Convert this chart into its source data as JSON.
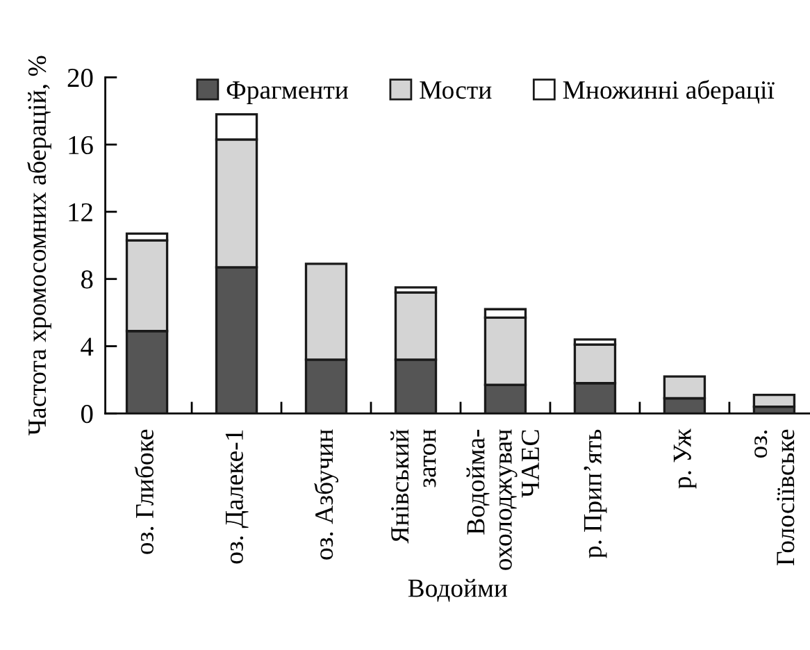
{
  "chart_data": {
    "type": "bar",
    "stacked": true,
    "xlabel": "Водойми",
    "ylabel": "Частота хромосомних аберацій, %",
    "categories": [
      "оз. Глибоке",
      "оз. Далеке-1",
      "оз. Азбучин",
      "Янівський\nзатон",
      "Водойма-\nохолоджувач\nЧАЕС",
      "р. Прип’ять",
      "р. Уж",
      "оз.\nГолосіївське"
    ],
    "series": [
      {
        "name": "Фрагменти",
        "color": "#555555",
        "values": [
          4.9,
          8.7,
          3.2,
          3.2,
          1.7,
          1.8,
          0.9,
          0.4
        ]
      },
      {
        "name": "Мости",
        "color": "#d4d4d4",
        "values": [
          5.4,
          7.6,
          5.7,
          4.0,
          4.0,
          2.3,
          1.3,
          0.7
        ]
      },
      {
        "name": "Множинні аберації",
        "color": "#ffffff",
        "values": [
          0.4,
          1.5,
          null,
          0.3,
          0.5,
          0.3,
          null,
          null
        ]
      }
    ],
    "ylim": [
      0,
      20
    ],
    "yticks": [
      0,
      4,
      8,
      12,
      16,
      20
    ],
    "legend": "top",
    "grid": false
  }
}
